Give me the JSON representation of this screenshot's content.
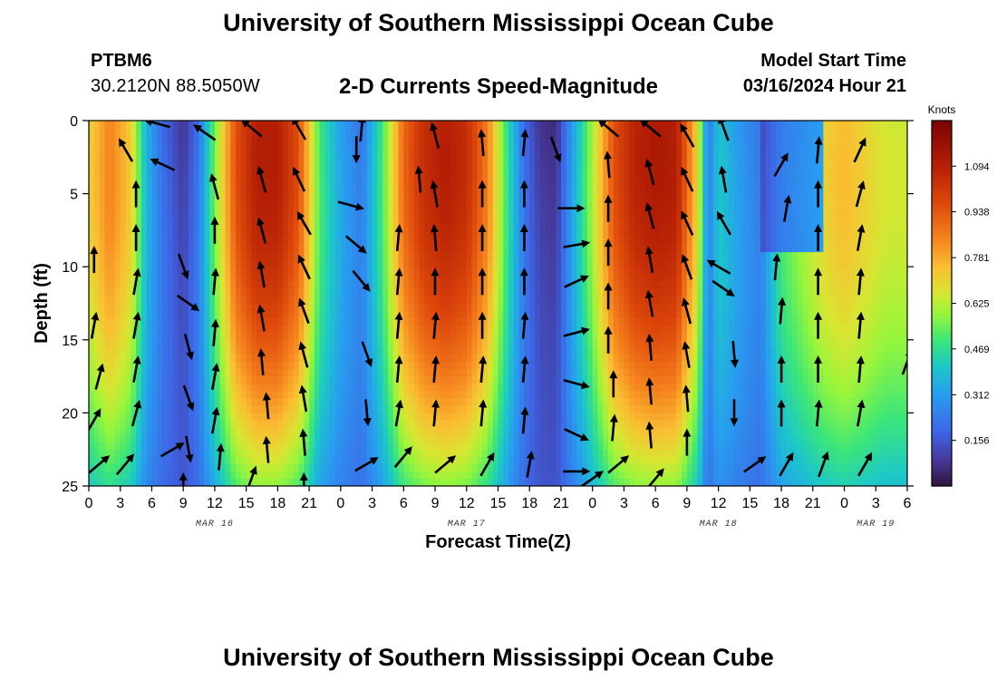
{
  "header": {
    "title": "University of Southern Mississippi Ocean Cube",
    "station": "PTBM6",
    "coords": "30.2120N  88.5050W",
    "subtitle": "2-D Currents Speed-Magnitude",
    "model_start_label": "Model Start Time",
    "model_start_value": "03/16/2024 Hour 21"
  },
  "footer": {
    "title": "University of Southern Mississippi Ocean Cube"
  },
  "chart_data": {
    "type": "heatmap",
    "title": "2-D Currents Speed-Magnitude",
    "xlabel": "Forecast Time(Z)",
    "ylabel": "Depth (ft)",
    "x_range_hours": [
      0,
      78
    ],
    "ylim": [
      0,
      25
    ],
    "y_ticks": [
      0,
      5,
      10,
      15,
      20,
      25
    ],
    "x_tick_labels": [
      "0",
      "3",
      "6",
      "9",
      "12",
      "15",
      "18",
      "21",
      "0",
      "3",
      "6",
      "9",
      "12",
      "15",
      "18",
      "21",
      "0",
      "3",
      "6",
      "9",
      "12",
      "15",
      "18",
      "21",
      "0",
      "3",
      "6"
    ],
    "date_labels": [
      {
        "text": "MAR 16",
        "hour": 12
      },
      {
        "text": "MAR 17",
        "hour": 36
      },
      {
        "text": "MAR 18",
        "hour": 60
      },
      {
        "text": "MAR 19",
        "hour": 75
      }
    ],
    "colorbar": {
      "unit": "Knots",
      "ticks": [
        0.156,
        0.312,
        0.469,
        0.625,
        0.781,
        0.938,
        1.094
      ],
      "tick_labels": [
        "0.156",
        "0.312",
        "0.469",
        "0.625",
        "0.781",
        "0.938",
        "1.094"
      ],
      "range": [
        0,
        1.25
      ]
    },
    "speed_time_profile_hours": [
      0,
      2,
      4,
      5.5,
      7,
      9,
      10.5,
      12,
      14,
      16,
      18,
      20,
      22,
      24,
      26,
      28,
      30,
      32,
      34,
      36,
      38,
      40,
      41.5,
      43,
      44.5,
      46,
      48,
      50,
      52,
      54,
      56,
      58,
      59,
      60,
      62,
      64,
      66,
      68,
      70,
      72,
      74,
      76,
      78
    ],
    "speed_time_profile_knots": [
      0.7,
      0.85,
      0.72,
      0.35,
      0.2,
      0.08,
      0.22,
      0.55,
      0.95,
      1.1,
      1.1,
      0.95,
      0.5,
      0.32,
      0.22,
      0.5,
      0.9,
      1.05,
      1.1,
      1.05,
      0.85,
      0.45,
      0.2,
      0.08,
      0.06,
      0.3,
      0.6,
      0.95,
      1.08,
      1.12,
      1.1,
      0.7,
      0.22,
      0.4,
      0.3,
      0.22,
      0.5,
      0.6,
      0.7,
      0.75,
      0.7,
      0.65,
      0.65
    ],
    "vectors": [
      {
        "hour": 0.5,
        "depth": 9.5,
        "dir_deg": 0
      },
      {
        "hour": 0.5,
        "depth": 14,
        "dir_deg": 10
      },
      {
        "hour": 1,
        "depth": 17.5,
        "dir_deg": 15
      },
      {
        "hour": 0.5,
        "depth": 20.5,
        "dir_deg": 30
      },
      {
        "hour": 1,
        "depth": 23.5,
        "dir_deg": 50
      },
      {
        "hour": 3.5,
        "depth": 23.5,
        "dir_deg": 40
      },
      {
        "hour": 3.5,
        "depth": 2,
        "dir_deg": 330
      },
      {
        "hour": 4.5,
        "depth": 5,
        "dir_deg": 0
      },
      {
        "hour": 4.5,
        "depth": 8,
        "dir_deg": 0
      },
      {
        "hour": 4.5,
        "depth": 11,
        "dir_deg": 10
      },
      {
        "hour": 4.5,
        "depth": 14,
        "dir_deg": 10
      },
      {
        "hour": 4.5,
        "depth": 17,
        "dir_deg": 10
      },
      {
        "hour": 4.5,
        "depth": 20,
        "dir_deg": 15
      },
      {
        "hour": 6.5,
        "depth": 0.2,
        "dir_deg": 285
      },
      {
        "hour": 7,
        "depth": 3,
        "dir_deg": 295
      },
      {
        "hour": 8,
        "depth": 22.5,
        "dir_deg": 60
      },
      {
        "hour": 9,
        "depth": 25,
        "dir_deg": 0
      },
      {
        "hour": 9,
        "depth": 10,
        "dir_deg": 160
      },
      {
        "hour": 9.5,
        "depth": 12.5,
        "dir_deg": 125
      },
      {
        "hour": 9.5,
        "depth": 15.5,
        "dir_deg": 165
      },
      {
        "hour": 9.5,
        "depth": 19,
        "dir_deg": 160
      },
      {
        "hour": 9.5,
        "depth": 22.5,
        "dir_deg": 170
      },
      {
        "hour": 11,
        "depth": 0.8,
        "dir_deg": 305
      },
      {
        "hour": 12,
        "depth": 4.5,
        "dir_deg": 345
      },
      {
        "hour": 12,
        "depth": 7.5,
        "dir_deg": 0
      },
      {
        "hour": 12,
        "depth": 11,
        "dir_deg": 5
      },
      {
        "hour": 12,
        "depth": 14.5,
        "dir_deg": 5
      },
      {
        "hour": 12,
        "depth": 17.5,
        "dir_deg": 10
      },
      {
        "hour": 12,
        "depth": 20.5,
        "dir_deg": 10
      },
      {
        "hour": 12.5,
        "depth": 23,
        "dir_deg": 5
      },
      {
        "hour": 15.5,
        "depth": 0.5,
        "dir_deg": 310
      },
      {
        "hour": 15.5,
        "depth": 24.5,
        "dir_deg": 20
      },
      {
        "hour": 16.5,
        "depth": 4,
        "dir_deg": 345
      },
      {
        "hour": 16.5,
        "depth": 7.5,
        "dir_deg": 345
      },
      {
        "hour": 16.5,
        "depth": 10.5,
        "dir_deg": 350
      },
      {
        "hour": 16.5,
        "depth": 13.5,
        "dir_deg": 350
      },
      {
        "hour": 16.5,
        "depth": 16.5,
        "dir_deg": 355
      },
      {
        "hour": 17,
        "depth": 19.5,
        "dir_deg": 355
      },
      {
        "hour": 17,
        "depth": 22.5,
        "dir_deg": 355
      },
      {
        "hour": 20,
        "depth": 0.5,
        "dir_deg": 330
      },
      {
        "hour": 20,
        "depth": 4,
        "dir_deg": 335
      },
      {
        "hour": 20.5,
        "depth": 7,
        "dir_deg": 330
      },
      {
        "hour": 20.5,
        "depth": 10,
        "dir_deg": 335
      },
      {
        "hour": 20.5,
        "depth": 13,
        "dir_deg": 340
      },
      {
        "hour": 20.5,
        "depth": 16,
        "dir_deg": 345
      },
      {
        "hour": 20.5,
        "depth": 19,
        "dir_deg": 350
      },
      {
        "hour": 20.5,
        "depth": 22,
        "dir_deg": 355
      },
      {
        "hour": 20.5,
        "depth": 25,
        "dir_deg": 0
      },
      {
        "hour": 25,
        "depth": 5.8,
        "dir_deg": 105
      },
      {
        "hour": 25.5,
        "depth": 8.5,
        "dir_deg": 130
      },
      {
        "hour": 26,
        "depth": 11,
        "dir_deg": 140
      },
      {
        "hour": 26,
        "depth": 0.5,
        "dir_deg": 5
      },
      {
        "hour": 25.5,
        "depth": 2,
        "dir_deg": 180
      },
      {
        "hour": 26.5,
        "depth": 16,
        "dir_deg": 160
      },
      {
        "hour": 26.5,
        "depth": 20,
        "dir_deg": 175
      },
      {
        "hour": 26.5,
        "depth": 23.5,
        "dir_deg": 60
      },
      {
        "hour": 29.5,
        "depth": 8,
        "dir_deg": 5
      },
      {
        "hour": 29.5,
        "depth": 11,
        "dir_deg": 5
      },
      {
        "hour": 29.5,
        "depth": 14,
        "dir_deg": 5
      },
      {
        "hour": 29.5,
        "depth": 17,
        "dir_deg": 5
      },
      {
        "hour": 29.5,
        "depth": 20,
        "dir_deg": 10
      },
      {
        "hour": 30,
        "depth": 23,
        "dir_deg": 40
      },
      {
        "hour": 31.5,
        "depth": 4,
        "dir_deg": 355
      },
      {
        "hour": 33,
        "depth": 1,
        "dir_deg": 345
      },
      {
        "hour": 33,
        "depth": 5,
        "dir_deg": 350
      },
      {
        "hour": 33,
        "depth": 8,
        "dir_deg": 355
      },
      {
        "hour": 33,
        "depth": 11,
        "dir_deg": 0
      },
      {
        "hour": 33,
        "depth": 14,
        "dir_deg": 5
      },
      {
        "hour": 33,
        "depth": 17,
        "dir_deg": 5
      },
      {
        "hour": 33,
        "depth": 20,
        "dir_deg": 5
      },
      {
        "hour": 34,
        "depth": 23.5,
        "dir_deg": 50
      },
      {
        "hour": 37.5,
        "depth": 1.5,
        "dir_deg": 355
      },
      {
        "hour": 37.5,
        "depth": 5,
        "dir_deg": 0
      },
      {
        "hour": 37.5,
        "depth": 8,
        "dir_deg": 0
      },
      {
        "hour": 37.5,
        "depth": 11,
        "dir_deg": 0
      },
      {
        "hour": 37.5,
        "depth": 14,
        "dir_deg": 0
      },
      {
        "hour": 37.5,
        "depth": 17,
        "dir_deg": 5
      },
      {
        "hour": 37.5,
        "depth": 20,
        "dir_deg": 5
      },
      {
        "hour": 38,
        "depth": 23.5,
        "dir_deg": 30
      },
      {
        "hour": 41.5,
        "depth": 1.5,
        "dir_deg": 5
      },
      {
        "hour": 41.5,
        "depth": 5,
        "dir_deg": 0
      },
      {
        "hour": 41.5,
        "depth": 8,
        "dir_deg": 0
      },
      {
        "hour": 41.5,
        "depth": 11,
        "dir_deg": 0
      },
      {
        "hour": 41.5,
        "depth": 14,
        "dir_deg": 5
      },
      {
        "hour": 41.5,
        "depth": 17,
        "dir_deg": 5
      },
      {
        "hour": 41.5,
        "depth": 20.5,
        "dir_deg": 5
      },
      {
        "hour": 42,
        "depth": 23.5,
        "dir_deg": 10
      },
      {
        "hour": 44.5,
        "depth": 2,
        "dir_deg": 160
      },
      {
        "hour": 46,
        "depth": 6,
        "dir_deg": 90
      },
      {
        "hour": 46.5,
        "depth": 8.5,
        "dir_deg": 80
      },
      {
        "hour": 46.5,
        "depth": 11,
        "dir_deg": 65
      },
      {
        "hour": 46.5,
        "depth": 14.5,
        "dir_deg": 75
      },
      {
        "hour": 46.5,
        "depth": 18,
        "dir_deg": 105
      },
      {
        "hour": 46.5,
        "depth": 21.5,
        "dir_deg": 115
      },
      {
        "hour": 46.5,
        "depth": 24,
        "dir_deg": 90
      },
      {
        "hour": 48,
        "depth": 24.5,
        "dir_deg": 55
      },
      {
        "hour": 49.5,
        "depth": 0.5,
        "dir_deg": 310
      },
      {
        "hour": 49.5,
        "depth": 3,
        "dir_deg": 355
      },
      {
        "hour": 49.5,
        "depth": 6,
        "dir_deg": 0
      },
      {
        "hour": 49.5,
        "depth": 9,
        "dir_deg": 0
      },
      {
        "hour": 49.5,
        "depth": 12,
        "dir_deg": 0
      },
      {
        "hour": 49.5,
        "depth": 15,
        "dir_deg": 0
      },
      {
        "hour": 50,
        "depth": 18,
        "dir_deg": 0
      },
      {
        "hour": 50,
        "depth": 21,
        "dir_deg": 5
      },
      {
        "hour": 50.5,
        "depth": 23.5,
        "dir_deg": 50
      },
      {
        "hour": 53.5,
        "depth": 0.5,
        "dir_deg": 310
      },
      {
        "hour": 53.5,
        "depth": 3.5,
        "dir_deg": 345
      },
      {
        "hour": 53.5,
        "depth": 6.5,
        "dir_deg": 345
      },
      {
        "hour": 53.5,
        "depth": 9.5,
        "dir_deg": 350
      },
      {
        "hour": 53.5,
        "depth": 12.5,
        "dir_deg": 350
      },
      {
        "hour": 53.5,
        "depth": 15.5,
        "dir_deg": 355
      },
      {
        "hour": 53.5,
        "depth": 18.5,
        "dir_deg": 355
      },
      {
        "hour": 53.5,
        "depth": 21.5,
        "dir_deg": 355
      },
      {
        "hour": 54,
        "depth": 24.5,
        "dir_deg": 40
      },
      {
        "hour": 57,
        "depth": 1,
        "dir_deg": 330
      },
      {
        "hour": 57,
        "depth": 4,
        "dir_deg": 335
      },
      {
        "hour": 57,
        "depth": 7,
        "dir_deg": 335
      },
      {
        "hour": 57,
        "depth": 10,
        "dir_deg": 340
      },
      {
        "hour": 57,
        "depth": 13,
        "dir_deg": 345
      },
      {
        "hour": 57,
        "depth": 16,
        "dir_deg": 350
      },
      {
        "hour": 57,
        "depth": 19,
        "dir_deg": 355
      },
      {
        "hour": 57,
        "depth": 22,
        "dir_deg": 0
      },
      {
        "hour": 60.5,
        "depth": 0.5,
        "dir_deg": 340
      },
      {
        "hour": 60.5,
        "depth": 4,
        "dir_deg": 350
      },
      {
        "hour": 60.5,
        "depth": 7,
        "dir_deg": 330
      },
      {
        "hour": 60,
        "depth": 10,
        "dir_deg": 300
      },
      {
        "hour": 60.5,
        "depth": 11.5,
        "dir_deg": 125
      },
      {
        "hour": 61.5,
        "depth": 16,
        "dir_deg": 175
      },
      {
        "hour": 61.5,
        "depth": 20,
        "dir_deg": 180
      },
      {
        "hour": 63.5,
        "depth": 23.5,
        "dir_deg": 55
      },
      {
        "hour": 66,
        "depth": 3,
        "dir_deg": 30
      },
      {
        "hour": 66.5,
        "depth": 6,
        "dir_deg": 10
      },
      {
        "hour": 65.5,
        "depth": 10,
        "dir_deg": 5
      },
      {
        "hour": 66,
        "depth": 13,
        "dir_deg": 5
      },
      {
        "hour": 66,
        "depth": 17,
        "dir_deg": 0
      },
      {
        "hour": 66,
        "depth": 20,
        "dir_deg": 0
      },
      {
        "hour": 66.5,
        "depth": 23.5,
        "dir_deg": 30
      },
      {
        "hour": 69.5,
        "depth": 2,
        "dir_deg": 5
      },
      {
        "hour": 69.5,
        "depth": 5,
        "dir_deg": 0
      },
      {
        "hour": 69.5,
        "depth": 8,
        "dir_deg": 0
      },
      {
        "hour": 69.5,
        "depth": 11,
        "dir_deg": 0
      },
      {
        "hour": 69.5,
        "depth": 14,
        "dir_deg": 0
      },
      {
        "hour": 69.5,
        "depth": 17,
        "dir_deg": 0
      },
      {
        "hour": 69.5,
        "depth": 20,
        "dir_deg": 5
      },
      {
        "hour": 70,
        "depth": 23.5,
        "dir_deg": 20
      },
      {
        "hour": 73.5,
        "depth": 2,
        "dir_deg": 25
      },
      {
        "hour": 73.5,
        "depth": 5,
        "dir_deg": 15
      },
      {
        "hour": 73.5,
        "depth": 8,
        "dir_deg": 10
      },
      {
        "hour": 73.5,
        "depth": 11,
        "dir_deg": 5
      },
      {
        "hour": 73.5,
        "depth": 14,
        "dir_deg": 5
      },
      {
        "hour": 73.5,
        "depth": 17,
        "dir_deg": 5
      },
      {
        "hour": 73.5,
        "depth": 20,
        "dir_deg": 10
      },
      {
        "hour": 74,
        "depth": 23.5,
        "dir_deg": 30
      },
      {
        "hour": 78,
        "depth": 16.5,
        "dir_deg": 20
      }
    ]
  }
}
